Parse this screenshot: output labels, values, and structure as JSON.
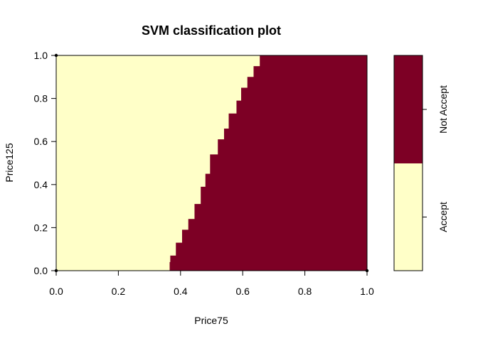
{
  "chart_data": {
    "type": "heatmap",
    "title": "SVM classification plot",
    "xlabel": "Price75",
    "ylabel": "Price125",
    "xlim": [
      0,
      1
    ],
    "ylim": [
      0,
      1
    ],
    "x_ticks": [
      "0.0",
      "0.2",
      "0.4",
      "0.6",
      "0.8",
      "1.0"
    ],
    "y_ticks": [
      "0.0",
      "0.2",
      "0.4",
      "0.6",
      "0.8",
      "1.0"
    ],
    "grid": false,
    "legend_position": "right",
    "classes": [
      {
        "name": "Accept",
        "color": "#FFFFC8"
      },
      {
        "name": "Not Accept",
        "color": "#7D0025"
      }
    ],
    "decision_boundary": {
      "description_of_region": "Accept to the left of the boundary, Not Accept to the right",
      "points": [
        {
          "price125": 0.0,
          "price75": 0.365
        },
        {
          "price125": 0.04,
          "price75": 0.367
        },
        {
          "price125": 0.07,
          "price75": 0.385
        },
        {
          "price125": 0.13,
          "price75": 0.405
        },
        {
          "price125": 0.19,
          "price75": 0.425
        },
        {
          "price125": 0.24,
          "price75": 0.445
        },
        {
          "price125": 0.31,
          "price75": 0.465
        },
        {
          "price125": 0.39,
          "price75": 0.48
        },
        {
          "price125": 0.45,
          "price75": 0.495
        },
        {
          "price125": 0.54,
          "price75": 0.52
        },
        {
          "price125": 0.61,
          "price75": 0.54
        },
        {
          "price125": 0.66,
          "price75": 0.555
        },
        {
          "price125": 0.73,
          "price75": 0.58
        },
        {
          "price125": 0.79,
          "price75": 0.595
        },
        {
          "price125": 0.85,
          "price75": 0.615
        },
        {
          "price125": 0.9,
          "price75": 0.635
        },
        {
          "price125": 0.95,
          "price75": 0.655
        },
        {
          "price125": 1.0,
          "price75": 0.655
        }
      ]
    },
    "support_vectors": [
      {
        "x": 0.0,
        "y": 1.0
      },
      {
        "x": 0.0,
        "y": 0.0
      },
      {
        "x": 1.0,
        "y": 0.0
      }
    ]
  }
}
